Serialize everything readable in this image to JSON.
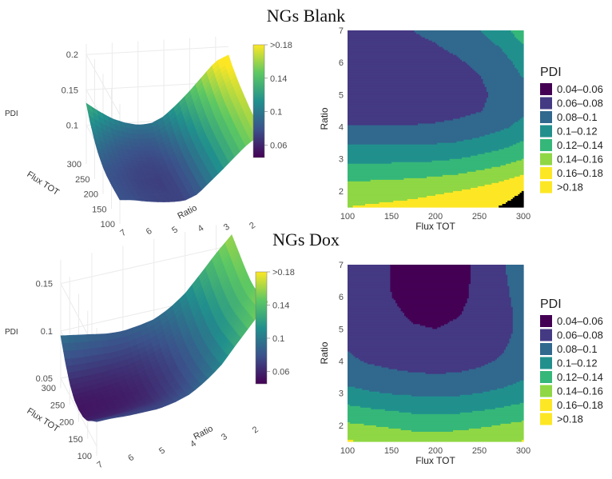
{
  "figure": {
    "colors": [
      "#440154",
      "#443983",
      "#31688e",
      "#21908d",
      "#35b779",
      "#8fd744",
      "#fde725"
    ],
    "panels": [
      {
        "title": "NGs Blank",
        "surface": {
          "zlabel": "PDI",
          "zticks": [
            "0.2",
            "0.15",
            "0.1"
          ],
          "flux_label": "Flux TOT",
          "flux_ticks": [
            "300",
            "250",
            "200",
            "150",
            "100"
          ],
          "ratio_label": "Ratio",
          "ratio_ticks": [
            "7",
            "6",
            "5",
            "4",
            "3",
            "2"
          ],
          "colorbar_ticks": [
            ">0.18",
            "0.14",
            "0.1",
            "0.06"
          ]
        }
      },
      {
        "title": "NGs Dox",
        "surface": {
          "zlabel": "PDI",
          "zticks": [
            "0.15",
            "0.1",
            "0.05"
          ],
          "flux_label": "Flux TOT",
          "flux_ticks": [
            "300",
            "250",
            "200",
            "150",
            "100"
          ],
          "ratio_label": "Ratio",
          "ratio_ticks": [
            "7",
            "6",
            "5",
            "4",
            "3",
            "2"
          ],
          "colorbar_ticks": [
            ">0.18",
            "0.14",
            "0.1",
            "0.06"
          ]
        }
      }
    ]
  },
  "chart_data": [
    {
      "type": "contour",
      "name": "NGs Blank",
      "title": "NGs Blank",
      "xlabel": "Flux TOT",
      "ylabel": "Ratio",
      "xlim": [
        100,
        300
      ],
      "ylim": [
        1.5,
        7
      ],
      "xticks": [
        "100",
        "150",
        "200",
        "250",
        "300"
      ],
      "yticks": [
        "2",
        "3",
        "4",
        "5",
        "6",
        "7"
      ],
      "legend_title": "PDI",
      "legend": [
        "0.04–0.06",
        "0.06–0.08",
        "0.08–0.1",
        "0.1–0.12",
        "0.12–0.14",
        "0.14–0.16",
        "0.16–0.18",
        ">0.18"
      ],
      "levels": [
        0.06,
        0.08,
        0.1,
        0.12,
        0.14,
        0.16,
        0.18
      ],
      "x": [
        100,
        125,
        150,
        175,
        200,
        225,
        250,
        275,
        300
      ],
      "y": [
        1.5,
        2,
        2.5,
        3,
        3.5,
        4,
        4.5,
        5,
        5.5,
        6,
        6.5,
        7
      ],
      "z": [
        [
          0.16,
          0.162,
          0.164,
          0.166,
          0.169,
          0.172,
          0.176,
          0.181,
          0.188
        ],
        [
          0.15,
          0.151,
          0.152,
          0.154,
          0.157,
          0.16,
          0.165,
          0.172,
          0.18
        ],
        [
          0.133,
          0.134,
          0.135,
          0.136,
          0.138,
          0.141,
          0.146,
          0.152,
          0.16
        ],
        [
          0.115,
          0.115,
          0.115,
          0.116,
          0.117,
          0.12,
          0.125,
          0.131,
          0.14
        ],
        [
          0.098,
          0.098,
          0.098,
          0.098,
          0.099,
          0.101,
          0.106,
          0.112,
          0.122
        ],
        [
          0.081,
          0.081,
          0.081,
          0.081,
          0.082,
          0.084,
          0.089,
          0.096,
          0.106
        ],
        [
          0.073,
          0.073,
          0.073,
          0.073,
          0.074,
          0.076,
          0.079,
          0.086,
          0.097
        ],
        [
          0.072,
          0.072,
          0.071,
          0.071,
          0.072,
          0.074,
          0.077,
          0.084,
          0.096
        ],
        [
          0.073,
          0.073,
          0.072,
          0.072,
          0.073,
          0.075,
          0.079,
          0.087,
          0.1
        ],
        [
          0.075,
          0.074,
          0.074,
          0.074,
          0.075,
          0.078,
          0.083,
          0.092,
          0.107
        ],
        [
          0.078,
          0.077,
          0.077,
          0.077,
          0.079,
          0.083,
          0.09,
          0.101,
          0.118
        ],
        [
          0.079,
          0.079,
          0.079,
          0.08,
          0.083,
          0.089,
          0.099,
          0.113,
          0.131
        ]
      ]
    },
    {
      "type": "contour",
      "name": "NGs Dox",
      "title": "NGs Dox",
      "xlabel": "Flux TOT",
      "ylabel": "Ratio",
      "xlim": [
        100,
        300
      ],
      "ylim": [
        1.5,
        7
      ],
      "xticks": [
        "100",
        "150",
        "200",
        "250",
        "300"
      ],
      "yticks": [
        "2",
        "3",
        "4",
        "5",
        "6",
        "7"
      ],
      "legend_title": "PDI",
      "legend": [
        "0.04–0.06",
        "0.06–0.08",
        "0.08–0.1",
        "0.1–0.12",
        "0.12–0.14",
        "0.14–0.16",
        "0.16–0.18",
        ">0.18"
      ],
      "levels": [
        0.06,
        0.08,
        0.1,
        0.12,
        0.14,
        0.16,
        0.18
      ],
      "x": [
        100,
        125,
        150,
        175,
        200,
        225,
        250,
        275,
        300
      ],
      "y": [
        1.5,
        2,
        2.5,
        3,
        3.5,
        4,
        4.5,
        5,
        5.5,
        6,
        6.5,
        7
      ],
      "z": [
        [
          0.162,
          0.158,
          0.154,
          0.15,
          0.15,
          0.152,
          0.155,
          0.158,
          0.161
        ],
        [
          0.143,
          0.14,
          0.137,
          0.134,
          0.133,
          0.134,
          0.137,
          0.141,
          0.145
        ],
        [
          0.125,
          0.121,
          0.118,
          0.115,
          0.114,
          0.115,
          0.118,
          0.122,
          0.127
        ],
        [
          0.106,
          0.102,
          0.099,
          0.097,
          0.096,
          0.097,
          0.1,
          0.104,
          0.11
        ],
        [
          0.093,
          0.088,
          0.085,
          0.083,
          0.082,
          0.083,
          0.086,
          0.091,
          0.098
        ],
        [
          0.083,
          0.078,
          0.075,
          0.073,
          0.072,
          0.073,
          0.076,
          0.082,
          0.09
        ],
        [
          0.078,
          0.073,
          0.069,
          0.067,
          0.066,
          0.067,
          0.07,
          0.077,
          0.087
        ],
        [
          0.075,
          0.07,
          0.064,
          0.061,
          0.06,
          0.062,
          0.066,
          0.074,
          0.085
        ],
        [
          0.075,
          0.069,
          0.062,
          0.058,
          0.057,
          0.059,
          0.064,
          0.073,
          0.086
        ],
        [
          0.075,
          0.068,
          0.06,
          0.056,
          0.055,
          0.057,
          0.063,
          0.074,
          0.089
        ],
        [
          0.076,
          0.068,
          0.059,
          0.055,
          0.054,
          0.056,
          0.063,
          0.075,
          0.092
        ],
        [
          0.076,
          0.068,
          0.059,
          0.054,
          0.053,
          0.055,
          0.063,
          0.077,
          0.095
        ]
      ]
    }
  ]
}
